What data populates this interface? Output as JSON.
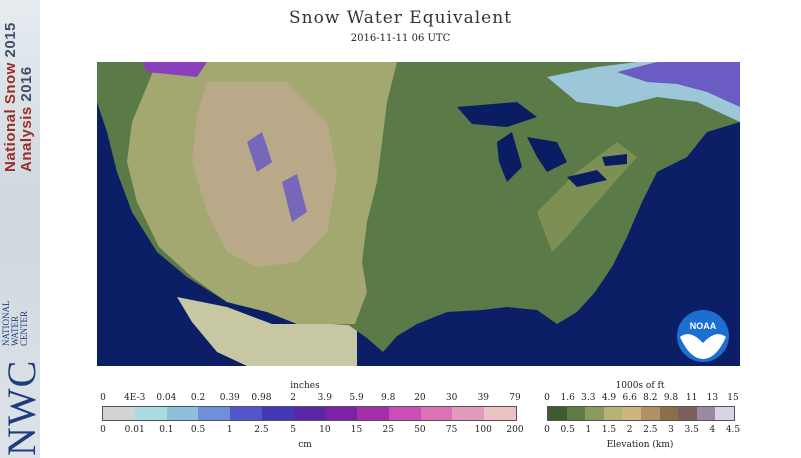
{
  "header": {
    "title": "Snow Water Equivalent",
    "date": "2016-11-11 06 UTC"
  },
  "sidebar": {
    "line1": "National Snow",
    "line2": "Analysis",
    "season_top": "2015",
    "season_bottom": "2016",
    "logo": "NWC",
    "org_lines": [
      "NATIONAL",
      "WATER",
      "CENTER"
    ]
  },
  "map": {
    "region": "Contiguous United States",
    "layers": [
      "snow water equivalent",
      "elevation"
    ],
    "colors": {
      "ocean": "#0c1f66",
      "lakes": "#0a1d62",
      "lowland": "#5a7a48",
      "plains": "#a3a871",
      "highland": "#b9a988",
      "snow_light": "#9cc7d9",
      "snow_mid": "#6b5cc4",
      "snow_heavy": "#8a3fbd",
      "mexico": "#c8c7a4"
    }
  },
  "noaa_logo": "NOAA",
  "swe_legend": {
    "top_unit": "inches",
    "bottom_unit": "cm",
    "top_ticks": [
      "0",
      "4E-3",
      "0.04",
      "0.2",
      "0.39",
      "0.98",
      "2",
      "3.9",
      "5.9",
      "9.8",
      "20",
      "30",
      "39",
      "79"
    ],
    "bottom_ticks": [
      "0",
      "0.01",
      "0.1",
      "0.5",
      "1",
      "2.5",
      "5",
      "10",
      "15",
      "25",
      "50",
      "75",
      "100",
      "200"
    ],
    "colors": [
      "#d2d4d4",
      "#a9dbe1",
      "#8ec0dd",
      "#6f8fd8",
      "#4f57c9",
      "#4437b7",
      "#5a26a8",
      "#7b22a6",
      "#a52ea9",
      "#cb4db5",
      "#dc72b8",
      "#e39bbb",
      "#ebc3c4"
    ]
  },
  "elev_legend": {
    "top_unit": "1000s of ft",
    "bottom_unit": "Elevation (km)",
    "top_ticks": [
      "0",
      "1.6",
      "3.3",
      "4.9",
      "6.6",
      "8.2",
      "9.8",
      "11",
      "13",
      "15"
    ],
    "bottom_ticks": [
      "0",
      "0.5",
      "1",
      "1.5",
      "2",
      "2.5",
      "3",
      "3.5",
      "4",
      "4.5"
    ],
    "colors": [
      "#3f5a2f",
      "#5e7a45",
      "#8a9a5b",
      "#b6b274",
      "#c9b77e",
      "#b19163",
      "#8c6e4c",
      "#7c5e5e",
      "#9a8aa4",
      "#d8d4e4"
    ]
  }
}
